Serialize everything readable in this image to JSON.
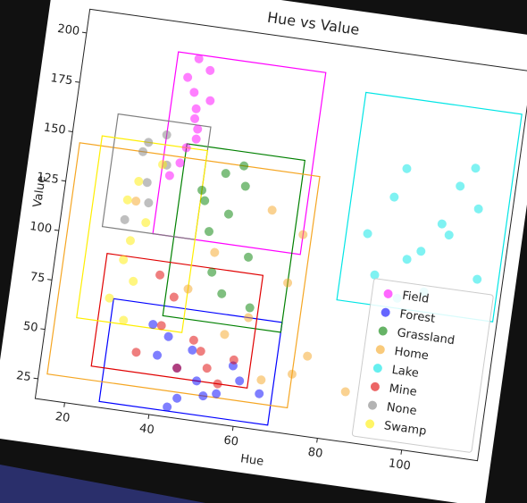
{
  "chart_data": {
    "type": "scatter",
    "title": "Hue vs Value",
    "x_label": "Hue",
    "y_label": "Value",
    "xlim": [
      13,
      118
    ],
    "ylim": [
      15,
      212
    ],
    "xticks": [
      20,
      40,
      60,
      80,
      100
    ],
    "yticks": [
      25,
      50,
      75,
      100,
      125,
      150,
      175,
      200
    ],
    "legend": "lower right",
    "series": [
      {
        "name": "Field",
        "color": "#ff00ff",
        "x": [
          38,
          40,
          41,
          42,
          40,
          39,
          43,
          41,
          37,
          42,
          40,
          44
        ],
        "y": [
          185,
          178,
          170,
          160,
          150,
          142,
          190,
          165,
          135,
          155,
          195,
          175
        ],
        "box": {
          "xlim": [
            35,
            70
          ],
          "ylim": [
            105,
            197
          ]
        }
      },
      {
        "name": "Forest",
        "color": "#0000ff",
        "x": [
          40,
          45,
          50,
          55,
          48,
          42,
          60,
          52,
          38,
          46,
          58,
          65,
          44
        ],
        "y": [
          45,
          40,
          35,
          30,
          50,
          55,
          38,
          28,
          60,
          25,
          45,
          33,
          20
        ],
        "box": {
          "xlim": [
            28,
            68
          ],
          "ylim": [
            18,
            70
          ]
        }
      },
      {
        "name": "Grassland",
        "color": "#008000",
        "x": [
          45,
          50,
          52,
          55,
          48,
          58,
          50,
          54,
          46,
          53,
          60
        ],
        "y": [
          130,
          140,
          120,
          135,
          110,
          100,
          90,
          145,
          125,
          80,
          75
        ],
        "box": {
          "xlim": [
            40,
            68
          ],
          "ylim": [
            65,
            152
          ]
        }
      },
      {
        "name": "Home",
        "color": "#f5a623",
        "x": [
          30,
          45,
          55,
          65,
          70,
          68,
          60,
          75,
          50,
          62,
          72,
          85
        ],
        "y": [
          120,
          80,
          60,
          40,
          115,
          90,
          70,
          55,
          100,
          125,
          45,
          40
        ],
        "box": {
          "xlim": [
            15,
            72
          ],
          "ylim": [
            28,
            145
          ]
        }
      },
      {
        "name": "Lake",
        "color": "#00e5e5",
        "x": [
          85,
          88,
          90,
          92,
          95,
          100,
          102,
          105,
          108,
          110,
          112,
          98,
          94,
          104
        ],
        "y": [
          120,
          100,
          140,
          155,
          110,
          95,
          130,
          150,
          160,
          140,
          105,
          115,
          90,
          125
        ],
        "box": {
          "xlim": [
            80,
            117
          ],
          "ylim": [
            85,
            190
          ]
        }
      },
      {
        "name": "Mine",
        "color": "#e00000",
        "x": [
          35,
          40,
          45,
          50,
          55,
          42,
          48,
          52,
          38,
          58
        ],
        "y": [
          45,
          60,
          40,
          50,
          35,
          75,
          55,
          42,
          85,
          48
        ],
        "box": {
          "xlim": [
            25,
            62
          ],
          "ylim": [
            35,
            92
          ]
        }
      },
      {
        "name": "None",
        "color": "#808080",
        "x": [
          30,
          32,
          35,
          33,
          28,
          36,
          31
        ],
        "y": [
          145,
          130,
          155,
          120,
          110,
          140,
          150
        ],
        "box": {
          "xlim": [
            23,
            45
          ],
          "ylim": [
            105,
            162
          ]
        }
      },
      {
        "name": "Swamp",
        "color": "#ffee00",
        "x": [
          28,
          30,
          32,
          27,
          33,
          30,
          29,
          35,
          31
        ],
        "y": [
          120,
          100,
          80,
          70,
          110,
          130,
          90,
          140,
          60
        ],
        "box": {
          "xlim": [
            20,
            45
          ],
          "ylim": [
            58,
            150
          ]
        }
      }
    ]
  }
}
